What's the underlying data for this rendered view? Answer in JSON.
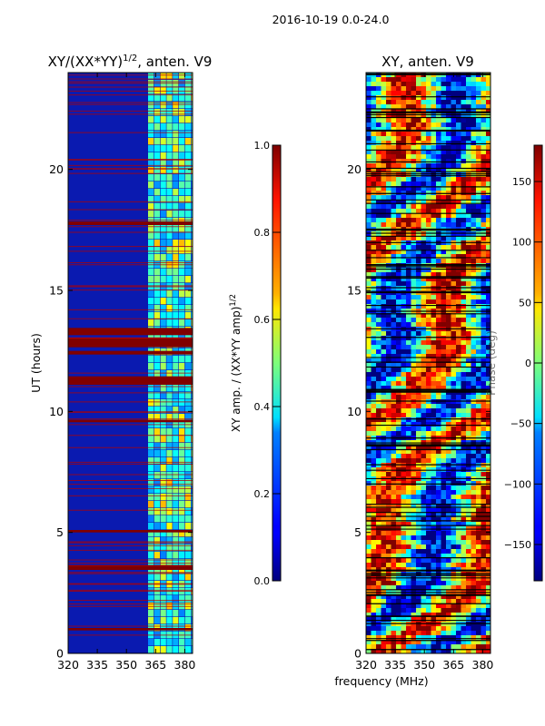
{
  "suptitle": "2016-10-19 0.0-24.0",
  "chart_data": [
    {
      "type": "heatmap",
      "title": "XY/(XX*YY)",
      "title_exponent": "1/2",
      "title_suffix": ", anten. V9",
      "ylabel": "UT (hours)",
      "xlabel": "",
      "xlim": [
        320,
        384
      ],
      "ylim": [
        0,
        24
      ],
      "xticks": [
        320,
        335,
        350,
        365,
        380
      ],
      "yticks": [
        0,
        5,
        10,
        15,
        20
      ],
      "colormap": "jet",
      "colorbar": {
        "label": "XY amp. / (XX*YY amp)",
        "label_exponent": "1/2",
        "range": [
          0.0,
          1.0
        ],
        "ticks": [
          "0.0",
          "0.2",
          "0.4",
          "0.6",
          "0.8",
          "1.0"
        ]
      },
      "flagged_bands_hours": [
        [
          11.1,
          11.45
        ],
        [
          12.35,
          12.5
        ],
        [
          12.65,
          13.05
        ],
        [
          13.15,
          13.45
        ],
        [
          17.7,
          17.85
        ],
        [
          3.45,
          3.65
        ],
        [
          5.0,
          5.1
        ],
        [
          0.95,
          1.05
        ],
        [
          9.55,
          9.65
        ]
      ]
    },
    {
      "type": "heatmap",
      "title": "XY, anten. V9",
      "xlabel": "frequency (MHz)",
      "ylabel": "",
      "xlim": [
        320,
        384
      ],
      "ylim": [
        0,
        24
      ],
      "xticks": [
        320,
        335,
        350,
        365,
        380
      ],
      "yticks": [
        0,
        5,
        10,
        15,
        20
      ],
      "colormap": "jet",
      "colorbar": {
        "label": "Phase (deg)",
        "range": [
          -180,
          180
        ],
        "ticks": [
          "-150",
          "-100",
          "-50",
          "0",
          "50",
          "100",
          "150"
        ]
      }
    }
  ]
}
